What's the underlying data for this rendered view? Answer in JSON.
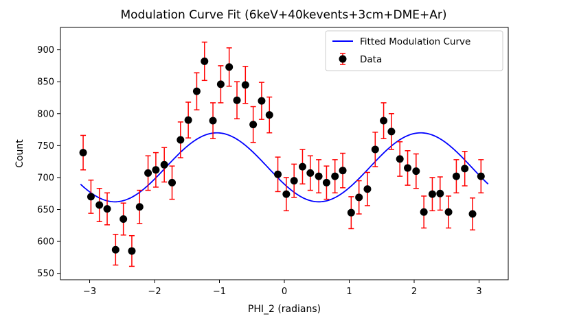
{
  "chart_data": {
    "type": "scatter",
    "title": "Modulation Curve Fit (6keV+40kevents+3cm+DME+Ar)",
    "xlabel": "PHI_2 (radians)",
    "ylabel": "Count",
    "xlim": [
      -3.45,
      3.45
    ],
    "ylim": [
      540,
      935
    ],
    "xticks": [
      -3,
      -2,
      -1,
      0,
      1,
      2,
      3
    ],
    "xtick_labels": [
      "−3",
      "−2",
      "−1",
      "0",
      "1",
      "2",
      "3"
    ],
    "yticks": [
      550,
      600,
      650,
      700,
      750,
      800,
      850,
      900
    ],
    "ytick_labels": [
      "550",
      "600",
      "650",
      "700",
      "750",
      "800",
      "850",
      "900"
    ],
    "legend": {
      "placement": "top-right",
      "entries": [
        "Fitted Modulation Curve",
        "Data"
      ]
    },
    "grid": false,
    "colors": {
      "fit": "#0000ff",
      "points": "#000000",
      "errorbars": "#ff0000"
    },
    "fit": {
      "mean": 716,
      "amplitude": 54,
      "phase": -1.04,
      "x_range": [
        -3.14,
        3.14
      ]
    },
    "series": [
      {
        "name": "Data",
        "x": [
          -3.1,
          -2.98,
          -2.85,
          -2.73,
          -2.6,
          -2.48,
          -2.35,
          -2.23,
          -2.1,
          -1.98,
          -1.85,
          -1.73,
          -1.6,
          -1.48,
          -1.35,
          -1.23,
          -1.1,
          -0.98,
          -0.85,
          -0.73,
          -0.6,
          -0.48,
          -0.35,
          -0.23,
          -0.1,
          0.03,
          0.15,
          0.28,
          0.4,
          0.53,
          0.65,
          0.78,
          0.9,
          1.03,
          1.15,
          1.28,
          1.4,
          1.53,
          1.65,
          1.78,
          1.9,
          2.03,
          2.15,
          2.28,
          2.4,
          2.53,
          2.65,
          2.78,
          2.9,
          3.03
        ],
        "y": [
          739,
          670,
          657,
          651,
          587,
          635,
          585,
          654,
          707,
          712,
          720,
          692,
          759,
          790,
          835,
          882,
          789,
          846,
          873,
          821,
          845,
          783,
          820,
          798,
          705,
          674,
          695,
          717,
          707,
          702,
          692,
          702,
          711,
          645,
          669,
          682,
          744,
          789,
          772,
          729,
          715,
          710,
          646,
          674,
          675,
          646,
          702,
          714,
          643,
          702
        ],
        "yerr": [
          27,
          26,
          26,
          25,
          24,
          25,
          24,
          26,
          27,
          27,
          27,
          26,
          28,
          28,
          29,
          30,
          28,
          29,
          30,
          29,
          29,
          28,
          29,
          28,
          27,
          26,
          26,
          27,
          27,
          26,
          26,
          26,
          27,
          25,
          26,
          26,
          27,
          28,
          28,
          27,
          27,
          27,
          25,
          26,
          26,
          25,
          26,
          27,
          25,
          26
        ]
      }
    ]
  }
}
